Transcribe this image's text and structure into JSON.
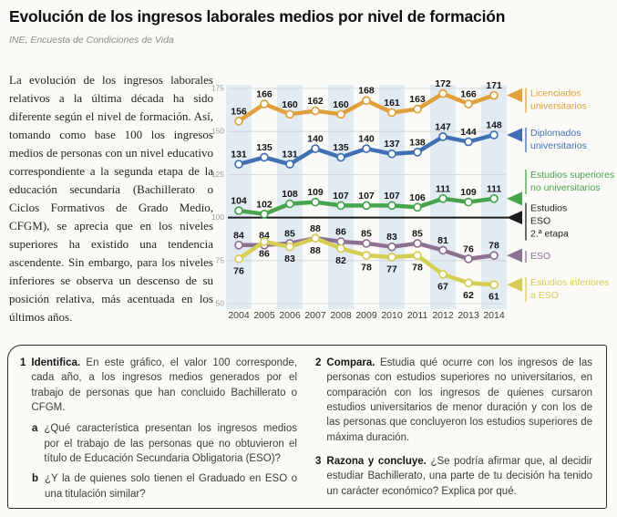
{
  "header": {
    "title": "Evolución de los ingresos laborales medios por nivel de formación",
    "source": "INE, Encuesta de Condiciones de Vida"
  },
  "intro_paragraph": "La evolución de los ingresos laborales relativos a la última década ha sido diferente según el nivel de formación. Así, tomando como base 100 los ingresos medios de personas con un nivel educativo correspondiente a la segunda etapa de la educación secundaria (Bachillerato o Ciclos Formativos de Grado Medio, CFGM), se aprecia que en los niveles superiores ha existido una tendencia ascendente. Sin embargo, para los niveles inferiores se observa un descenso de su posición relativa, más acentuada en los últimos años.",
  "chart_data": {
    "type": "line",
    "x": [
      2004,
      2005,
      2006,
      2007,
      2008,
      2009,
      2010,
      2011,
      2012,
      2013,
      2014
    ],
    "ylim": [
      50,
      175
    ],
    "yticks": [
      175,
      150,
      125,
      100,
      75,
      50
    ],
    "grid": true,
    "stripe_color": "#e2ebf2",
    "baseline": {
      "value": 100,
      "color": "#1c1c1c"
    },
    "legend_position": "right",
    "series": [
      {
        "name": "Licenciados universitarios",
        "color": "#E0A03C",
        "label_position": "above",
        "values": [
          156,
          166,
          160,
          162,
          160,
          168,
          161,
          163,
          172,
          166,
          171
        ]
      },
      {
        "name": "Diplomados universitarios",
        "color": "#4170B4",
        "label_position": "above",
        "values": [
          131,
          135,
          131,
          140,
          135,
          140,
          137,
          138,
          147,
          144,
          148
        ]
      },
      {
        "name": "Estudios superiores no universitarios",
        "color": "#46A44C",
        "label_position": "above",
        "values": [
          104,
          102,
          108,
          109,
          107,
          107,
          107,
          106,
          111,
          109,
          111
        ]
      },
      {
        "name": "ESO",
        "color": "#8D7190",
        "label_position": "above",
        "values": [
          84,
          84,
          85,
          88,
          86,
          85,
          83,
          85,
          81,
          76,
          78
        ]
      },
      {
        "name": "Estudios inferiores a ESO",
        "color": "#D5CE52",
        "label_position": "below",
        "values": [
          76,
          86,
          83,
          88,
          82,
          78,
          77,
          78,
          67,
          62,
          61
        ]
      }
    ],
    "legend": [
      {
        "lines": [
          "Licenciados",
          "universitarios"
        ],
        "color": "#E0A03C",
        "level": 171,
        "dy": 1
      },
      {
        "lines": [
          "Diplomados",
          "universitarios"
        ],
        "color": "#4170B4",
        "level": 148,
        "dy": 1
      },
      {
        "lines": [
          "Estudios superiores",
          "no universitarios"
        ],
        "color": "#46A44C",
        "level": 111,
        "dy": -23
      },
      {
        "lines": [
          "Estudios",
          "ESO",
          "2.ª etapa"
        ],
        "color": "#1c1c1c",
        "level": 100,
        "dy": -7
      },
      {
        "lines": [
          "ESO"
        ],
        "color": "#8D7190",
        "level": 78,
        "dy": 4
      },
      {
        "lines": [
          "Estudios inferiores",
          "a ESO"
        ],
        "color": "#D5CE52",
        "level": 61,
        "dy": 1
      }
    ]
  },
  "questions": {
    "q1": {
      "number": "1",
      "keyword": "Identifica.",
      "text": "En este gráfico, el valor 100 corresponde, cada año, a los ingresos medios generados por el trabajo de personas que han concluido Bachillerato o CFGM.",
      "subitems": [
        {
          "letter": "a",
          "text": "¿Qué característica presentan los ingresos medios por el trabajo de las personas que no obtuvieron el título de Educación Secundaria Obligatoria (ESO)?"
        },
        {
          "letter": "b",
          "text": "¿Y la de quienes solo tienen el Graduado en ESO o una titulación similar?"
        }
      ]
    },
    "q2": {
      "number": "2",
      "keyword": "Compara.",
      "text": "Estudia qué ocurre con los ingresos de las personas con estudios superiores no universitarios, en comparación con los ingresos de quienes cursaron estudios universitarios de menor duración y con los de las personas que concluyeron los estudios superiores de máxima duración."
    },
    "q3": {
      "number": "3",
      "keyword": "Razona y concluye.",
      "text": "¿Se podría afirmar que, al decidir estudiar Bachillerato, una parte de tu decisión ha tenido un carácter económico? Explica por qué."
    }
  }
}
